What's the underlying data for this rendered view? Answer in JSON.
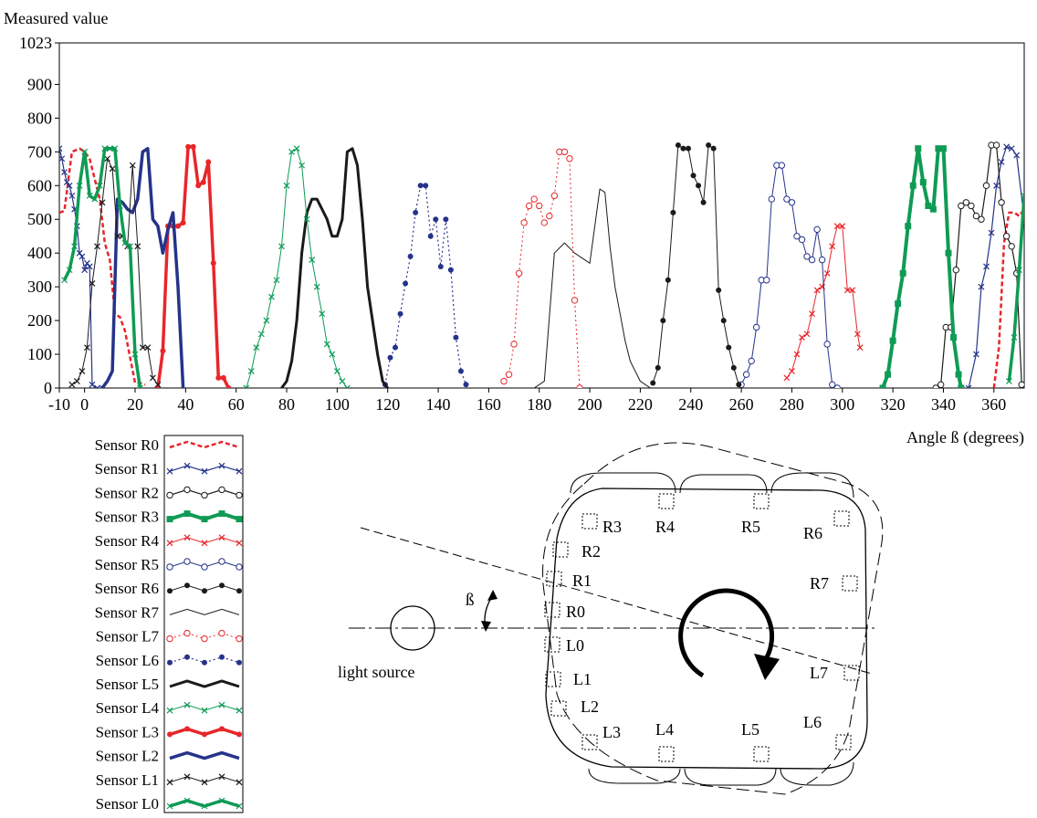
{
  "chart_data": {
    "type": "line",
    "ylabel": "Measured value",
    "xlabel": "Angle ß (degrees)",
    "xlim": [
      -10,
      372
    ],
    "ylim": [
      0,
      1023
    ],
    "xticks": [
      -10,
      0,
      20,
      40,
      60,
      80,
      100,
      120,
      140,
      160,
      180,
      200,
      220,
      240,
      260,
      280,
      300,
      320,
      340,
      360
    ],
    "yticks": [
      0,
      100,
      200,
      300,
      400,
      500,
      600,
      700,
      800,
      900,
      1023
    ],
    "grid": false,
    "legend_position": "bottom-left",
    "series": [
      {
        "name": "Sensor R0",
        "color": "#e8262b",
        "dash": "5,3",
        "width": 2.5,
        "marker": "none",
        "x": [
          -10,
          -8,
          -5,
          -2,
          0,
          2,
          4,
          6,
          8,
          10,
          12,
          14,
          16,
          18,
          20,
          22,
          24,
          360,
          362,
          364,
          366,
          368,
          370,
          372
        ],
        "y": [
          520,
          525,
          700,
          710,
          700,
          680,
          620,
          560,
          430,
          380,
          220,
          210,
          170,
          90,
          15,
          15,
          10,
          0,
          120,
          430,
          520,
          520,
          510,
          530
        ]
      },
      {
        "name": "Sensor R1",
        "color": "#25338a",
        "dash": "",
        "width": 1.2,
        "marker": "x",
        "x": [
          -10,
          -9,
          -8,
          -7,
          -6,
          -5,
          -4,
          -3,
          -2,
          -1,
          0,
          1,
          2,
          3,
          5,
          7,
          350,
          353,
          355,
          357,
          359,
          361,
          363,
          365,
          367,
          369,
          372
        ],
        "y": [
          710,
          680,
          640,
          610,
          600,
          570,
          530,
          480,
          400,
          390,
          350,
          370,
          360,
          10,
          0,
          0,
          0,
          100,
          300,
          360,
          460,
          600,
          670,
          715,
          710,
          690,
          500
        ]
      },
      {
        "name": "Sensor R2",
        "color": "#1a1a1a",
        "dash": "",
        "width": 1.2,
        "marker": "circle",
        "x": [
          337,
          339,
          341,
          343,
          345,
          347,
          349,
          351,
          353,
          355,
          357,
          359,
          361,
          363,
          365,
          367,
          369,
          371
        ],
        "y": [
          0,
          10,
          180,
          180,
          350,
          540,
          550,
          540,
          510,
          500,
          600,
          720,
          720,
          550,
          450,
          420,
          340,
          10
        ]
      },
      {
        "name": "Sensor R3",
        "color": "#0f9b55",
        "dash": "",
        "width": 4,
        "marker": "square",
        "x": [
          316,
          318,
          320,
          322,
          324,
          326,
          328,
          330,
          332,
          334,
          336,
          338,
          340,
          342,
          344,
          346,
          347
        ],
        "y": [
          0,
          40,
          140,
          250,
          340,
          480,
          600,
          710,
          610,
          540,
          530,
          710,
          710,
          400,
          150,
          40,
          0
        ]
      },
      {
        "name": "Sensor R4",
        "color": "#e8262b",
        "dash": "",
        "width": 1,
        "marker": "x",
        "x": [
          278,
          280,
          282,
          284,
          286,
          288,
          290,
          292,
          294,
          296,
          298,
          300,
          302,
          304,
          306,
          307
        ],
        "y": [
          30,
          50,
          100,
          150,
          160,
          220,
          290,
          300,
          340,
          420,
          480,
          480,
          290,
          290,
          160,
          120
        ]
      },
      {
        "name": "Sensor R5",
        "color": "#25338a",
        "dash": "",
        "width": 1,
        "marker": "circle",
        "x": [
          260,
          262,
          264,
          266,
          268,
          270,
          272,
          274,
          276,
          278,
          280,
          282,
          284,
          286,
          288,
          290,
          292,
          294,
          296,
          298
        ],
        "y": [
          10,
          40,
          80,
          180,
          320,
          320,
          560,
          660,
          660,
          560,
          550,
          450,
          440,
          390,
          380,
          470,
          380,
          130,
          10,
          0
        ]
      },
      {
        "name": "Sensor R6",
        "color": "#1a1a1a",
        "dash": "",
        "width": 1,
        "marker": "dot",
        "x": [
          225,
          227,
          229,
          231,
          233,
          235,
          237,
          239,
          241,
          243,
          245,
          247,
          249,
          251,
          253,
          255,
          257,
          259
        ],
        "y": [
          15,
          60,
          200,
          320,
          520,
          720,
          710,
          710,
          630,
          600,
          550,
          720,
          710,
          290,
          200,
          120,
          60,
          10
        ]
      },
      {
        "name": "Sensor R7",
        "color": "#1a1a1a",
        "dash": "",
        "width": 1,
        "marker": "none",
        "x": [
          178,
          182,
          186,
          190,
          194,
          198,
          200,
          202,
          204,
          206,
          208,
          210,
          212,
          214,
          216,
          220,
          224
        ],
        "y": [
          0,
          20,
          400,
          430,
          400,
          380,
          370,
          480,
          590,
          580,
          420,
          300,
          220,
          140,
          80,
          20,
          0
        ]
      },
      {
        "name": "Sensor L7",
        "color": "#e8262b",
        "dash": "2,3",
        "width": 1,
        "marker": "ocircle",
        "x": [
          166,
          168,
          170,
          172,
          174,
          176,
          178,
          180,
          182,
          184,
          186,
          188,
          190,
          192,
          194,
          196
        ],
        "y": [
          20,
          40,
          130,
          340,
          490,
          540,
          560,
          540,
          490,
          510,
          570,
          700,
          700,
          680,
          260,
          0
        ]
      },
      {
        "name": "Sensor L6",
        "color": "#25338a",
        "dash": "2,3",
        "width": 1.2,
        "marker": "dot",
        "x": [
          119,
          121,
          123,
          125,
          127,
          129,
          131,
          133,
          135,
          137,
          139,
          141,
          143,
          145,
          147,
          149,
          151
        ],
        "y": [
          10,
          90,
          120,
          220,
          310,
          390,
          520,
          600,
          600,
          450,
          500,
          360,
          500,
          350,
          150,
          50,
          10
        ]
      },
      {
        "name": "Sensor L5",
        "color": "#1a1a1a",
        "dash": "",
        "width": 3,
        "marker": "none",
        "x": [
          78,
          80,
          82,
          84,
          86,
          88,
          90,
          92,
          94,
          96,
          98,
          100,
          102,
          104,
          106,
          108,
          110,
          112,
          114,
          116,
          118,
          120
        ],
        "y": [
          0,
          20,
          80,
          200,
          400,
          520,
          560,
          560,
          530,
          500,
          450,
          450,
          500,
          700,
          710,
          660,
          500,
          300,
          200,
          100,
          20,
          0
        ]
      },
      {
        "name": "Sensor L4",
        "color": "#0f9b55",
        "dash": "",
        "width": 1,
        "marker": "x",
        "x": [
          64,
          66,
          68,
          70,
          72,
          74,
          76,
          78,
          80,
          82,
          84,
          86,
          88,
          90,
          92,
          94,
          96,
          98,
          100,
          102,
          104
        ],
        "y": [
          0,
          50,
          120,
          160,
          200,
          270,
          320,
          420,
          600,
          700,
          710,
          660,
          500,
          380,
          300,
          220,
          130,
          100,
          50,
          20,
          0
        ]
      },
      {
        "name": "Sensor L3",
        "color": "#e8262b",
        "dash": "",
        "width": 3.5,
        "marker": "dot",
        "x": [
          29,
          31,
          33,
          35,
          37,
          39,
          41,
          43,
          45,
          47,
          49,
          51,
          53,
          55,
          57
        ],
        "y": [
          0,
          110,
          480,
          480,
          480,
          490,
          715,
          715,
          600,
          610,
          670,
          370,
          30,
          30,
          0
        ]
      },
      {
        "name": "Sensor L2",
        "color": "#25338a",
        "dash": "",
        "width": 3.5,
        "marker": "none",
        "x": [
          7,
          9,
          11,
          13,
          15,
          17,
          19,
          21,
          23,
          25,
          27,
          29,
          31,
          33,
          35,
          37,
          39
        ],
        "y": [
          0,
          20,
          50,
          560,
          550,
          530,
          520,
          560,
          700,
          710,
          500,
          480,
          400,
          470,
          520,
          300,
          0
        ]
      },
      {
        "name": "Sensor L1",
        "color": "#1a1a1a",
        "dash": "",
        "width": 1,
        "marker": "x",
        "x": [
          -5,
          -3,
          -1,
          1,
          3,
          5,
          7,
          9,
          11,
          13,
          15,
          17,
          19,
          21,
          23,
          25,
          27,
          29
        ],
        "y": [
          10,
          20,
          50,
          120,
          310,
          420,
          550,
          680,
          650,
          450,
          450,
          420,
          660,
          420,
          120,
          120,
          30,
          10
        ]
      },
      {
        "name": "Sensor L0",
        "color": "#0f9b55",
        "dash": "",
        "width": 3.5,
        "marker": "x",
        "x": [
          -8,
          -6,
          -4,
          -2,
          0,
          2,
          4,
          6,
          8,
          10,
          12,
          14,
          16,
          18,
          20,
          22,
          366,
          368,
          370,
          372
        ],
        "y": [
          320,
          350,
          420,
          600,
          700,
          570,
          560,
          600,
          710,
          710,
          710,
          540,
          430,
          420,
          100,
          0,
          20,
          150,
          350,
          570
        ]
      }
    ]
  },
  "diagram": {
    "beta_label": "ß",
    "light_source_label": "light source",
    "sensor_labels": [
      "R3",
      "R4",
      "R5",
      "R6",
      "R2",
      "R1",
      "R7",
      "R0",
      "L0",
      "L1",
      "L7",
      "L2",
      "L3",
      "L4",
      "L5",
      "L6"
    ]
  }
}
